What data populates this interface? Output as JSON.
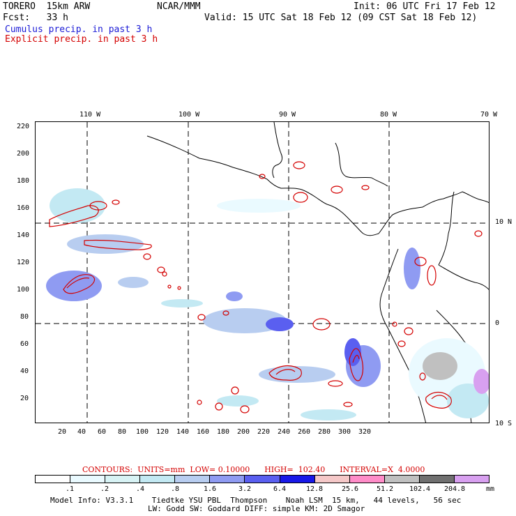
{
  "header": {
    "model": "TORERO  15km ARW",
    "org": "NCAR/MMM",
    "init": "Init: 06 UTC Fri 17 Feb 12",
    "fcst": "Fcst:   33 h",
    "valid": "Valid: 15 UTC Sat 18 Feb 12 (09 CST Sat 18 Feb 12)",
    "legend_cumulus": "Cumulus precip. in past 3 h",
    "legend_explicit": "Explicit precip. in past 3 h"
  },
  "top_ticks": [
    "110 W",
    "100 W",
    "90 W",
    "80 W",
    "70 W"
  ],
  "right_ticks": [
    "10 N",
    "0",
    "10 S"
  ],
  "left_ticks": [
    "220",
    "200",
    "180",
    "160",
    "140",
    "120",
    "100",
    "80",
    "60",
    "40",
    "20"
  ],
  "bottom_ticks": [
    "20",
    "40",
    "60",
    "80",
    "100",
    "120",
    "140",
    "160",
    "180",
    "200",
    "220",
    "240",
    "260",
    "280",
    "300",
    "320"
  ],
  "contours_line": "CONTOURS:  UNITS=mm  LOW= 0.10000      HIGH=  102.40      INTERVAL=X  4.0000",
  "colorbar": {
    "labels": [
      ".1",
      ".2",
      ".4",
      ".8",
      "1.6",
      "3.2",
      "6.4",
      "12.8",
      "25.6",
      "51.2",
      "102.4",
      "204.8"
    ],
    "unit": "mm",
    "colors": [
      "#ffffff",
      "#eafaff",
      "#d8f3f5",
      "#c3e9f3",
      "#b8cdf0",
      "#8f9bf2",
      "#5a5ff0",
      "#1818e8",
      "#f5c8c8",
      "#ff8cc8",
      "#c0c0c0",
      "#707070",
      "#d8a0f0"
    ]
  },
  "footer": {
    "line1": "Model Info: V3.3.1    Tiedtke YSU PBL  Thompson    Noah LSM  15 km,   44 levels,   56 sec",
    "line2": "LW: Godd SW: Goddard DIFF: simple KM: 2D Smagor"
  },
  "colors": {
    "cumulus": "#1a1ad6",
    "explicit": "#d40000"
  }
}
